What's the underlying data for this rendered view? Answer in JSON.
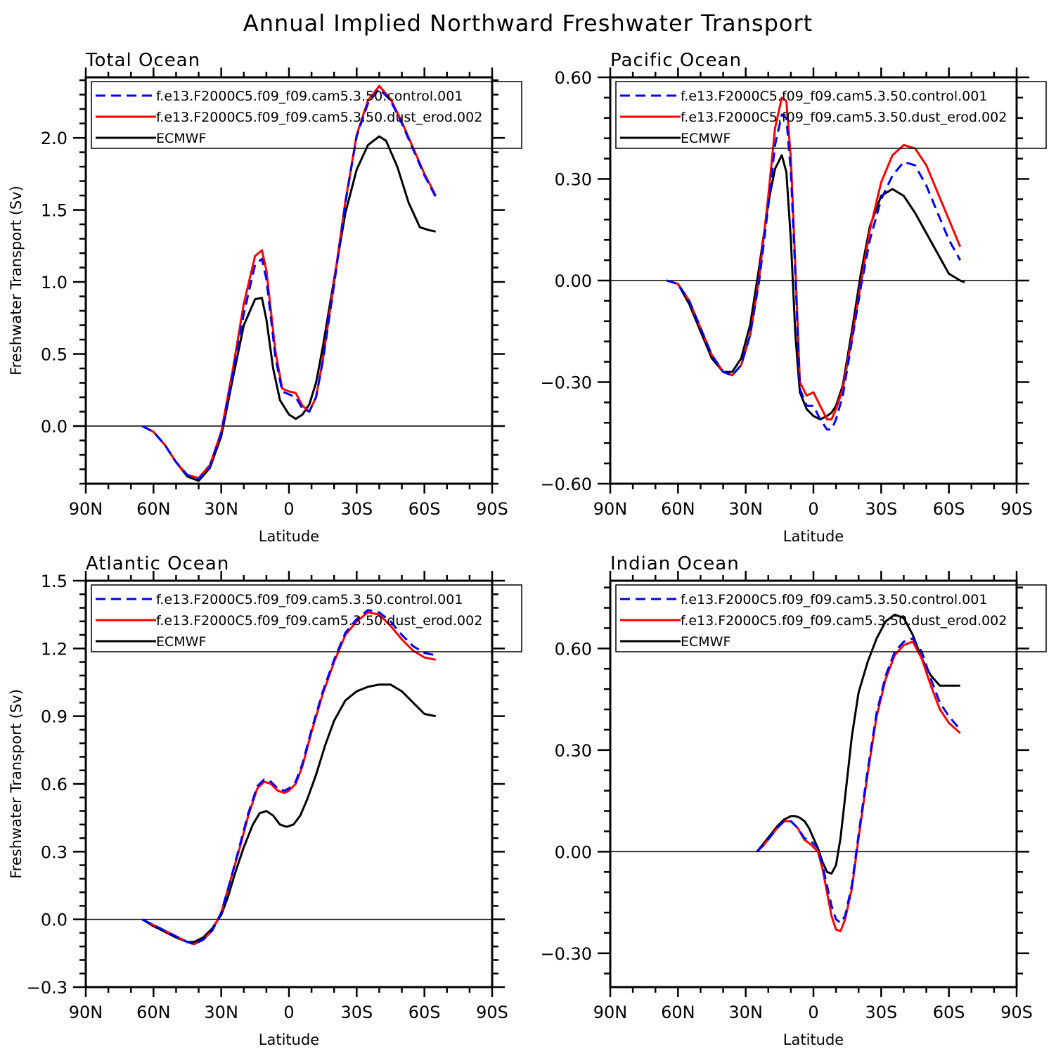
{
  "title": "Annual Implied Northward Freshwater Transport",
  "colors": {
    "control": "#0000ff",
    "dust": "#ff0000",
    "ecmwf": "#000000",
    "frame": "#000000"
  },
  "chart_data": [
    {
      "type": "line",
      "title": "Total Ocean",
      "xlabel": "Latitude",
      "ylabel": "Freshwater Transport (Sv)",
      "xlim": [
        90,
        -90
      ],
      "ylim": [
        -0.4,
        2.42
      ],
      "xticks": [
        90,
        60,
        30,
        0,
        -30,
        -60,
        -90
      ],
      "xtick_labels": [
        "90N",
        "60N",
        "30N",
        "0",
        "30S",
        "60S",
        "90S"
      ],
      "yticks": [
        0,
        0.5,
        1,
        1.5,
        2
      ],
      "ytick_labels": [
        "0.0",
        "0.5",
        "1.0",
        "1.5",
        "2.0"
      ],
      "zero_line": true,
      "grid": false,
      "legend": "top-left",
      "series": [
        {
          "name": "f.e13.F2000C5.f09_f09.cam5.3.50.control.001",
          "color": "#0000ff",
          "dash": true,
          "x": [
            65,
            60,
            55,
            50,
            45,
            40,
            35,
            30,
            25,
            20,
            15,
            12,
            10,
            6,
            3,
            0,
            -3,
            -6,
            -9,
            -12,
            -15,
            -20,
            -25,
            -30,
            -35,
            -40,
            -45,
            -50,
            -55,
            -60,
            -65
          ],
          "y": [
            0,
            -0.04,
            -0.13,
            -0.25,
            -0.34,
            -0.37,
            -0.28,
            -0.05,
            0.35,
            0.78,
            1.12,
            1.16,
            1.02,
            0.48,
            0.24,
            0.22,
            0.2,
            0.12,
            0.1,
            0.2,
            0.45,
            0.98,
            1.55,
            2.01,
            2.24,
            2.34,
            2.26,
            2.1,
            1.92,
            1.74,
            1.59
          ]
        },
        {
          "name": "f.e13.F2000C5.f09_f09.cam5.3.50.dust_erod.002",
          "color": "#ff0000",
          "dash": false,
          "x": [
            65,
            60,
            55,
            50,
            45,
            40,
            35,
            30,
            25,
            20,
            15,
            12,
            10,
            6,
            3,
            0,
            -3,
            -6,
            -9,
            -12,
            -15,
            -20,
            -25,
            -30,
            -35,
            -40,
            -45,
            -50,
            -55,
            -60,
            -65
          ],
          "y": [
            0,
            -0.04,
            -0.13,
            -0.25,
            -0.34,
            -0.36,
            -0.27,
            -0.04,
            0.38,
            0.85,
            1.18,
            1.22,
            1.08,
            0.52,
            0.26,
            0.24,
            0.23,
            0.14,
            0.1,
            0.2,
            0.46,
            1.0,
            1.56,
            2.02,
            2.26,
            2.36,
            2.27,
            2.11,
            1.93,
            1.75,
            1.6
          ]
        },
        {
          "name": "ECMWF",
          "color": "#000000",
          "dash": false,
          "x": [
            65,
            60,
            55,
            50,
            45,
            40,
            35,
            30,
            25,
            20,
            15,
            12,
            10,
            7,
            4,
            0,
            -3,
            -6,
            -9,
            -12,
            -15,
            -20,
            -25,
            -30,
            -35,
            -40,
            -43,
            -48,
            -53,
            -58,
            -62,
            -65
          ],
          "y": [
            0,
            -0.04,
            -0.13,
            -0.25,
            -0.35,
            -0.38,
            -0.29,
            -0.07,
            0.32,
            0.7,
            0.88,
            0.89,
            0.74,
            0.4,
            0.18,
            0.08,
            0.05,
            0.08,
            0.15,
            0.3,
            0.55,
            1.02,
            1.48,
            1.78,
            1.95,
            2.01,
            1.98,
            1.8,
            1.55,
            1.38,
            1.36,
            1.35
          ]
        }
      ]
    },
    {
      "type": "line",
      "title": "Pacific Ocean",
      "xlabel": "Latitude",
      "ylabel": "",
      "xlim": [
        90,
        -90
      ],
      "ylim": [
        -0.6,
        0.6
      ],
      "xticks": [
        90,
        60,
        30,
        0,
        -30,
        -60,
        -90
      ],
      "xtick_labels": [
        "90N",
        "60N",
        "30N",
        "0",
        "30S",
        "60S",
        "90S"
      ],
      "yticks": [
        -0.6,
        -0.3,
        0,
        0.3,
        0.6
      ],
      "ytick_labels": [
        "−0.60",
        "−0.30",
        "0.00",
        "0.30",
        "0.60"
      ],
      "zero_line": true,
      "grid": false,
      "legend": "top-left",
      "series": [
        {
          "name": "f.e13.F2000C5.f09_f09.cam5.3.50.control.001",
          "color": "#0000ff",
          "dash": true,
          "x": [
            65,
            60,
            55,
            50,
            45,
            40,
            36,
            32,
            28,
            24,
            20,
            17,
            14,
            12,
            10,
            8,
            6,
            3,
            0,
            -3,
            -6,
            -8,
            -10,
            -13,
            -17,
            -21,
            -25,
            -30,
            -35,
            -40,
            -45,
            -50,
            -55,
            -60,
            -65
          ],
          "y": [
            0,
            -0.01,
            -0.06,
            -0.14,
            -0.22,
            -0.27,
            -0.28,
            -0.25,
            -0.16,
            0,
            0.22,
            0.4,
            0.49,
            0.48,
            0.32,
            0.02,
            -0.32,
            -0.37,
            -0.37,
            -0.41,
            -0.44,
            -0.44,
            -0.41,
            -0.34,
            -0.18,
            -0.02,
            0.12,
            0.24,
            0.31,
            0.35,
            0.34,
            0.28,
            0.2,
            0.12,
            0.06
          ]
        },
        {
          "name": "f.e13.F2000C5.f09_f09.cam5.3.50.dust_erod.002",
          "color": "#ff0000",
          "dash": false,
          "x": [
            65,
            60,
            55,
            50,
            45,
            40,
            36,
            32,
            28,
            24,
            20,
            17,
            14,
            12,
            10,
            8,
            6,
            3,
            0,
            -3,
            -6,
            -8,
            -10,
            -13,
            -17,
            -21,
            -25,
            -30,
            -35,
            -40,
            -45,
            -50,
            -55,
            -60,
            -65
          ],
          "y": [
            0,
            -0.01,
            -0.06,
            -0.14,
            -0.22,
            -0.27,
            -0.28,
            -0.25,
            -0.16,
            0.01,
            0.25,
            0.45,
            0.54,
            0.53,
            0.36,
            0.04,
            -0.3,
            -0.34,
            -0.33,
            -0.37,
            -0.41,
            -0.41,
            -0.38,
            -0.32,
            -0.17,
            -0.01,
            0.15,
            0.29,
            0.37,
            0.4,
            0.39,
            0.34,
            0.26,
            0.18,
            0.1
          ]
        },
        {
          "name": "ECMWF",
          "color": "#000000",
          "dash": false,
          "x": [
            65,
            60,
            55,
            50,
            45,
            40,
            36,
            32,
            28,
            24,
            20,
            17,
            14,
            12,
            10,
            8,
            6,
            3,
            0,
            -3,
            -6,
            -8,
            -10,
            -13,
            -17,
            -21,
            -25,
            -30,
            -35,
            -40,
            -45,
            -50,
            -55,
            -60,
            -65,
            -67
          ],
          "y": [
            0,
            -0.01,
            -0.07,
            -0.15,
            -0.23,
            -0.27,
            -0.27,
            -0.23,
            -0.13,
            0.04,
            0.23,
            0.33,
            0.37,
            0.32,
            0.12,
            -0.16,
            -0.33,
            -0.38,
            -0.4,
            -0.41,
            -0.4,
            -0.39,
            -0.37,
            -0.31,
            -0.15,
            0.02,
            0.16,
            0.25,
            0.27,
            0.25,
            0.2,
            0.14,
            0.08,
            0.02,
            0,
            -0.005
          ]
        }
      ]
    },
    {
      "type": "line",
      "title": "Atlantic Ocean",
      "xlabel": "Latitude",
      "ylabel": "Freshwater Transport (Sv)",
      "xlim": [
        90,
        -90
      ],
      "ylim": [
        -0.3,
        1.5
      ],
      "xticks": [
        90,
        60,
        30,
        0,
        -30,
        -60,
        -90
      ],
      "xtick_labels": [
        "90N",
        "60N",
        "30N",
        "0",
        "30S",
        "60S",
        "90S"
      ],
      "yticks": [
        -0.3,
        0,
        0.3,
        0.6,
        0.9,
        1.2,
        1.5
      ],
      "ytick_labels": [
        "−0.3",
        "0.0",
        "0.3",
        "0.6",
        "0.9",
        "1.2",
        "1.5"
      ],
      "zero_line": true,
      "grid": false,
      "legend": "top-left",
      "series": [
        {
          "name": "f.e13.F2000C5.f09_f09.cam5.3.50.control.001",
          "color": "#0000ff",
          "dash": true,
          "x": [
            65,
            60,
            55,
            50,
            45,
            42,
            38,
            34,
            30,
            26,
            22,
            18,
            14,
            11,
            8,
            5,
            2,
            0,
            -3,
            -6,
            -10,
            -15,
            -20,
            -25,
            -30,
            -35,
            -40,
            -45,
            -50,
            -55,
            -60,
            -65
          ],
          "y": [
            0,
            -0.025,
            -0.05,
            -0.075,
            -0.1,
            -0.11,
            -0.09,
            -0.05,
            0.03,
            0.17,
            0.32,
            0.47,
            0.59,
            0.62,
            0.61,
            0.58,
            0.57,
            0.58,
            0.61,
            0.69,
            0.84,
            1.01,
            1.15,
            1.27,
            1.33,
            1.37,
            1.36,
            1.32,
            1.26,
            1.21,
            1.18,
            1.17
          ]
        },
        {
          "name": "f.e13.F2000C5.f09_f09.cam5.3.50.dust_erod.002",
          "color": "#ff0000",
          "dash": false,
          "x": [
            65,
            60,
            55,
            50,
            45,
            42,
            38,
            34,
            30,
            26,
            22,
            18,
            14,
            11,
            8,
            5,
            2,
            0,
            -3,
            -6,
            -10,
            -15,
            -20,
            -25,
            -30,
            -35,
            -40,
            -45,
            -50,
            -55,
            -60,
            -65
          ],
          "y": [
            0,
            -0.025,
            -0.05,
            -0.075,
            -0.1,
            -0.11,
            -0.09,
            -0.05,
            0.03,
            0.17,
            0.31,
            0.46,
            0.58,
            0.61,
            0.6,
            0.57,
            0.56,
            0.57,
            0.6,
            0.68,
            0.83,
            1.0,
            1.14,
            1.26,
            1.32,
            1.36,
            1.35,
            1.3,
            1.24,
            1.19,
            1.16,
            1.15
          ]
        },
        {
          "name": "ECMWF",
          "color": "#000000",
          "dash": false,
          "x": [
            65,
            60,
            55,
            50,
            45,
            42,
            38,
            34,
            30,
            27,
            24,
            20,
            16,
            13,
            10,
            7,
            4,
            1,
            -2,
            -5,
            -8,
            -12,
            -16,
            -20,
            -25,
            -30,
            -35,
            -40,
            -45,
            -50,
            -55,
            -60,
            -65
          ],
          "y": [
            0,
            -0.03,
            -0.055,
            -0.08,
            -0.1,
            -0.1,
            -0.08,
            -0.04,
            0.02,
            0.1,
            0.2,
            0.32,
            0.42,
            0.47,
            0.48,
            0.46,
            0.42,
            0.41,
            0.42,
            0.46,
            0.53,
            0.64,
            0.77,
            0.88,
            0.97,
            1.01,
            1.03,
            1.04,
            1.04,
            1.01,
            0.96,
            0.91,
            0.9
          ]
        }
      ]
    },
    {
      "type": "line",
      "title": "Indian Ocean",
      "xlabel": "Latitude",
      "ylabel": "",
      "xlim": [
        90,
        -90
      ],
      "ylim": [
        -0.4,
        0.8
      ],
      "xticks": [
        90,
        60,
        30,
        0,
        -30,
        -60,
        -90
      ],
      "xtick_labels": [
        "90N",
        "60N",
        "30N",
        "0",
        "30S",
        "60S",
        "90S"
      ],
      "yticks": [
        -0.3,
        0,
        0.3,
        0.6
      ],
      "ytick_labels": [
        "−0.30",
        "0.00",
        "0.30",
        "0.60"
      ],
      "zero_line": true,
      "grid": false,
      "legend": "top-left",
      "series": [
        {
          "name": "f.e13.F2000C5.f09_f09.cam5.3.50.control.001",
          "color": "#0000ff",
          "dash": true,
          "x": [
            25,
            22,
            19,
            16,
            13,
            10,
            7,
            4,
            1,
            -2,
            -4,
            -6,
            -8,
            -10,
            -12,
            -14,
            -17,
            -20,
            -24,
            -28,
            -32,
            -36,
            -40,
            -44,
            -48,
            -52,
            -56,
            -60,
            -65
          ],
          "y": [
            0,
            0.02,
            0.045,
            0.07,
            0.09,
            0.09,
            0.07,
            0.04,
            0.03,
            0.01,
            -0.04,
            -0.1,
            -0.16,
            -0.2,
            -0.21,
            -0.19,
            -0.1,
            0.05,
            0.24,
            0.41,
            0.52,
            0.59,
            0.62,
            0.63,
            0.59,
            0.51,
            0.44,
            0.4,
            0.36
          ]
        },
        {
          "name": "f.e13.F2000C5.f09_f09.cam5.3.50.dust_erod.002",
          "color": "#ff0000",
          "dash": false,
          "x": [
            25,
            22,
            19,
            16,
            13,
            10,
            7,
            4,
            1,
            -2,
            -4,
            -6,
            -8,
            -10,
            -12,
            -14,
            -17,
            -20,
            -24,
            -28,
            -32,
            -36,
            -40,
            -44,
            -48,
            -52,
            -56,
            -60,
            -65
          ],
          "y": [
            0,
            0.02,
            0.045,
            0.07,
            0.09,
            0.09,
            0.07,
            0.035,
            0.02,
            0,
            -0.05,
            -0.12,
            -0.19,
            -0.23,
            -0.235,
            -0.2,
            -0.11,
            0.04,
            0.23,
            0.4,
            0.51,
            0.58,
            0.61,
            0.62,
            0.57,
            0.49,
            0.42,
            0.38,
            0.35
          ]
        },
        {
          "name": "ECMWF",
          "color": "#000000",
          "dash": false,
          "x": [
            25,
            22,
            19,
            16,
            13,
            10,
            8,
            6,
            4,
            2,
            0,
            -2,
            -4,
            -6,
            -8,
            -10,
            -12,
            -14,
            -17,
            -20,
            -24,
            -28,
            -32,
            -36,
            -40,
            -44,
            -48,
            -52,
            -56,
            -60,
            -65
          ],
          "y": [
            0,
            0.025,
            0.05,
            0.075,
            0.095,
            0.105,
            0.105,
            0.1,
            0.09,
            0.07,
            0.04,
            0.01,
            -0.03,
            -0.06,
            -0.065,
            -0.04,
            0.04,
            0.16,
            0.34,
            0.47,
            0.56,
            0.63,
            0.68,
            0.7,
            0.69,
            0.64,
            0.57,
            0.52,
            0.49,
            0.49,
            0.49
          ]
        }
      ]
    }
  ]
}
